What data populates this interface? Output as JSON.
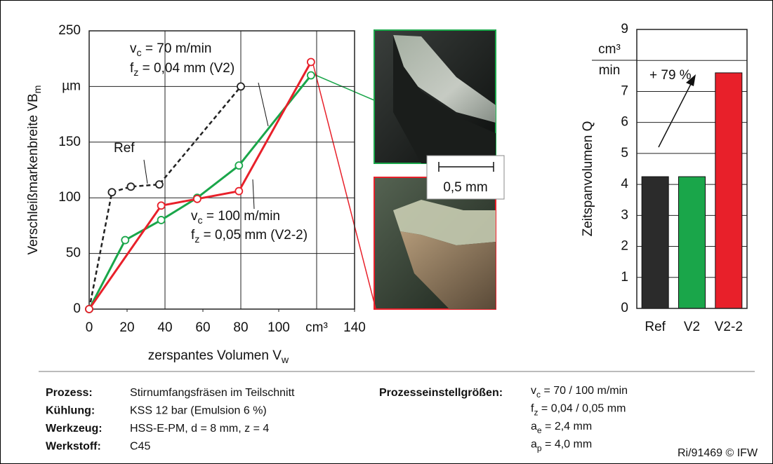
{
  "chart_data": [
    {
      "type": "line",
      "y_label": [
        {
          "text": "Verschleißmarkenbreite VB"
        },
        {
          "sub": "m"
        }
      ],
      "x_label": [
        {
          "text": "zerspantes Volumen V"
        },
        {
          "sub": "w"
        }
      ],
      "xlim": [
        0,
        140
      ],
      "xticks": [
        0,
        20,
        40,
        60,
        80,
        100,
        {
          "value": 120,
          "label": "cm³"
        },
        140
      ],
      "ylim": [
        0,
        250
      ],
      "yticks": [
        0,
        50,
        100,
        150,
        {
          "value": 200,
          "label": "µm"
        },
        250
      ],
      "grid": true,
      "series": [
        {
          "name": "Ref",
          "color": "#222222",
          "dashed": true,
          "x": [
            0,
            12,
            22,
            37,
            80
          ],
          "values": [
            0,
            105,
            110,
            112,
            200
          ]
        },
        {
          "name": "V2",
          "color": "#1aa64a",
          "dashed": false,
          "x": [
            0,
            19,
            38,
            57,
            79,
            117
          ],
          "values": [
            0,
            62,
            80,
            100,
            129,
            210
          ]
        },
        {
          "name": "V2-2",
          "color": "#e8202a",
          "dashed": false,
          "x": [
            0,
            38,
            57,
            79,
            117
          ],
          "values": [
            0,
            93,
            99,
            106,
            222
          ]
        }
      ],
      "annotations": [
        {
          "parts": [
            {
              "text": "v"
            },
            {
              "sub": "c"
            },
            {
              "text": " = 70 m/min"
            }
          ]
        },
        {
          "parts": [
            {
              "text": "f"
            },
            {
              "sub": "z"
            },
            {
              "text": " = 0,04 mm (V2)"
            }
          ]
        },
        {
          "parts": [
            {
              "text": "Ref"
            }
          ]
        },
        {
          "parts": [
            {
              "text": "v"
            },
            {
              "sub": "c"
            },
            {
              "text": " = 100 m/min"
            }
          ]
        },
        {
          "parts": [
            {
              "text": "f"
            },
            {
              "sub": "z"
            },
            {
              "text": " = 0,05 mm (V2-2)"
            }
          ]
        }
      ]
    },
    {
      "type": "bar",
      "y_label": [
        {
          "text": "Zeitspanvolumen Q"
        }
      ],
      "y_unit": "cm³",
      "categories": [
        "Ref",
        "V2",
        "V2-2"
      ],
      "values": [
        4.25,
        4.25,
        7.6
      ],
      "colors": [
        "#2b2b2b",
        "#1aa64a",
        "#e8202a"
      ],
      "ylim": [
        0,
        9
      ],
      "yticks": [
        0,
        1,
        2,
        3,
        4,
        5,
        6,
        7,
        {
          "value": 8,
          "label": "min"
        },
        9
      ],
      "grid": true,
      "annotations": [
        {
          "parts": [
            {
              "text": "+ 79 %"
            }
          ]
        }
      ]
    }
  ],
  "scale_bar": "0,5 mm",
  "process_info": {
    "left": [
      {
        "label": "Prozess:",
        "value": "Stirnumfangsfräsen im Teilschnitt"
      },
      {
        "label": "Kühlung:",
        "value": "KSS 12 bar (Emulsion 6 %)"
      },
      {
        "label": "Werkzeug:",
        "value": "HSS-E-PM, d = 8 mm, z = 4"
      },
      {
        "label": "Werkstoff:",
        "value": "C45"
      }
    ],
    "settings_label": "Prozesseinstellgrößen:",
    "settings": [
      [
        {
          "text": "v"
        },
        {
          "sub": "c"
        },
        {
          "text": " = 70 / 100 m/min"
        }
      ],
      [
        {
          "text": "f"
        },
        {
          "sub": "z"
        },
        {
          "text": " = 0,04 / 0,05 mm"
        }
      ],
      [
        {
          "text": "a"
        },
        {
          "sub": "e"
        },
        {
          "text": " = 2,4 mm"
        }
      ],
      [
        {
          "text": "a"
        },
        {
          "sub": "p"
        },
        {
          "text": " = 4,0 mm"
        }
      ]
    ],
    "footer": "Ri/91469 © IFW"
  }
}
